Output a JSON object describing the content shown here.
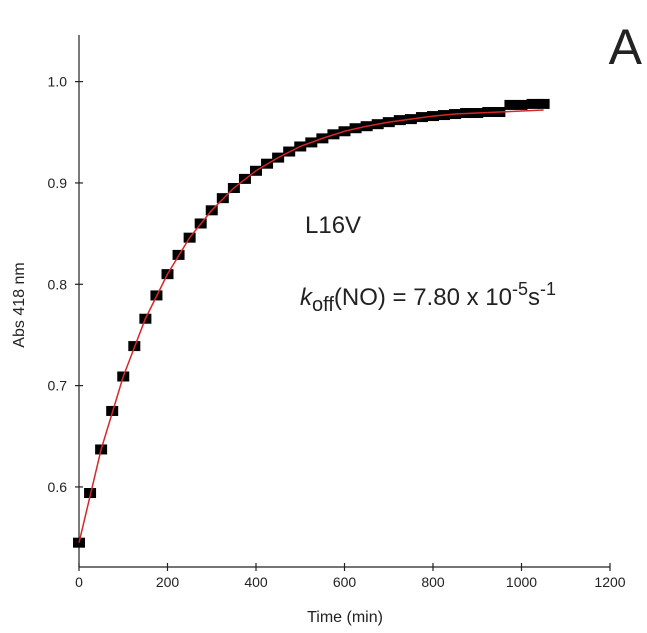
{
  "chart_data": {
    "type": "scatter_fit",
    "panel_label": "A",
    "x_label": "Time (min)",
    "y_label": "Abs 418 nm",
    "annotations": {
      "sample": "L16V",
      "k": "k",
      "k_sub": "off",
      "eq": "(NO) = 7.80 x 10",
      "exp1": "-5",
      "unit": "s",
      "exp2": "-1"
    },
    "xlim": [
      0,
      1200
    ],
    "xticks": [
      0,
      200,
      400,
      600,
      800,
      1000,
      1200
    ],
    "ylim": [
      0.521,
      1.046
    ],
    "yticks": [
      0.6,
      0.7,
      0.8,
      0.9,
      {
        "value": 1,
        "label": "1.0"
      }
    ],
    "series": [
      {
        "style": "markers",
        "color": "#000000",
        "x": [
          0,
          25,
          50,
          75,
          100,
          125,
          150,
          175,
          200,
          225,
          250,
          275,
          300,
          325,
          350,
          375,
          400,
          425,
          450,
          475,
          500,
          525,
          550,
          575,
          600,
          625,
          650,
          675,
          700,
          725,
          750,
          775,
          800,
          825,
          850,
          875,
          900,
          925,
          950,
          975,
          1000,
          1025,
          1050
        ],
        "values": [
          0.545,
          0.594,
          0.637,
          0.675,
          0.709,
          0.739,
          0.766,
          0.789,
          0.81,
          0.829,
          0.846,
          0.86,
          0.873,
          0.885,
          0.895,
          0.904,
          0.912,
          0.919,
          0.925,
          0.931,
          0.936,
          0.94,
          0.944,
          0.948,
          0.951,
          0.954,
          0.956,
          0.958,
          0.96,
          0.962,
          0.963,
          0.965,
          0.966,
          0.967,
          0.968,
          0.969,
          0.969,
          0.97,
          0.97,
          0.977,
          0.977,
          0.978,
          0.978
        ]
      },
      {
        "style": "line",
        "color": "#d62728",
        "x": [
          0,
          50,
          100,
          150,
          200,
          250,
          300,
          350,
          400,
          450,
          500,
          550,
          600,
          650,
          700,
          750,
          800,
          850,
          900,
          950,
          1000,
          1050
        ],
        "values": [
          0.545,
          0.637,
          0.709,
          0.766,
          0.81,
          0.846,
          0.873,
          0.895,
          0.912,
          0.925,
          0.936,
          0.944,
          0.951,
          0.956,
          0.96,
          0.963,
          0.966,
          0.968,
          0.969,
          0.97,
          0.971,
          0.972
        ]
      }
    ]
  }
}
